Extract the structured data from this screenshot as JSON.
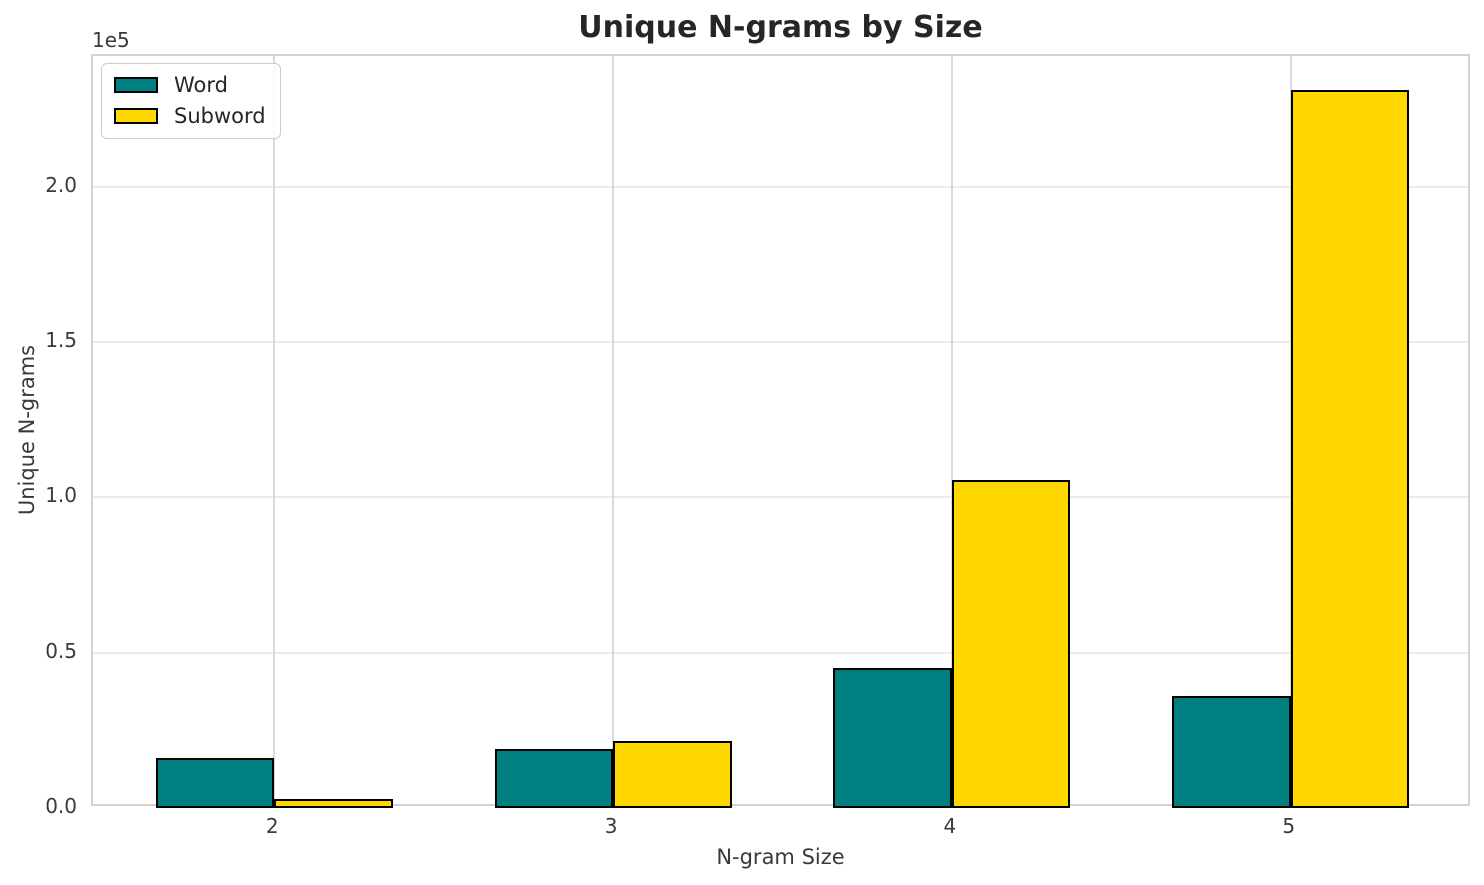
{
  "title": "Unique N-grams by Size",
  "chart_data": {
    "type": "bar",
    "title": "Unique N-grams by Size",
    "xlabel": "N-gram Size",
    "ylabel": "Unique N-grams",
    "offset_text": "1e5",
    "categories": [
      2,
      3,
      4,
      5
    ],
    "series": [
      {
        "name": "Word",
        "color": "#008080",
        "values": [
          16000,
          19000,
          45000,
          36000
        ]
      },
      {
        "name": "Subword",
        "color": "#ffd700",
        "values": [
          2900,
          21500,
          105500,
          231000
        ]
      }
    ],
    "bar_width": 0.35,
    "xlim": [
      1.465,
      5.535
    ],
    "ylim": [
      0,
      242000
    ],
    "yticks": [
      0,
      50000,
      100000,
      150000,
      200000
    ],
    "ytick_labels": [
      "0.0",
      "0.5",
      "1.0",
      "1.5",
      "2.0"
    ],
    "grid": true,
    "legend_position": "upper left",
    "bar_edge_color": "#000000"
  }
}
